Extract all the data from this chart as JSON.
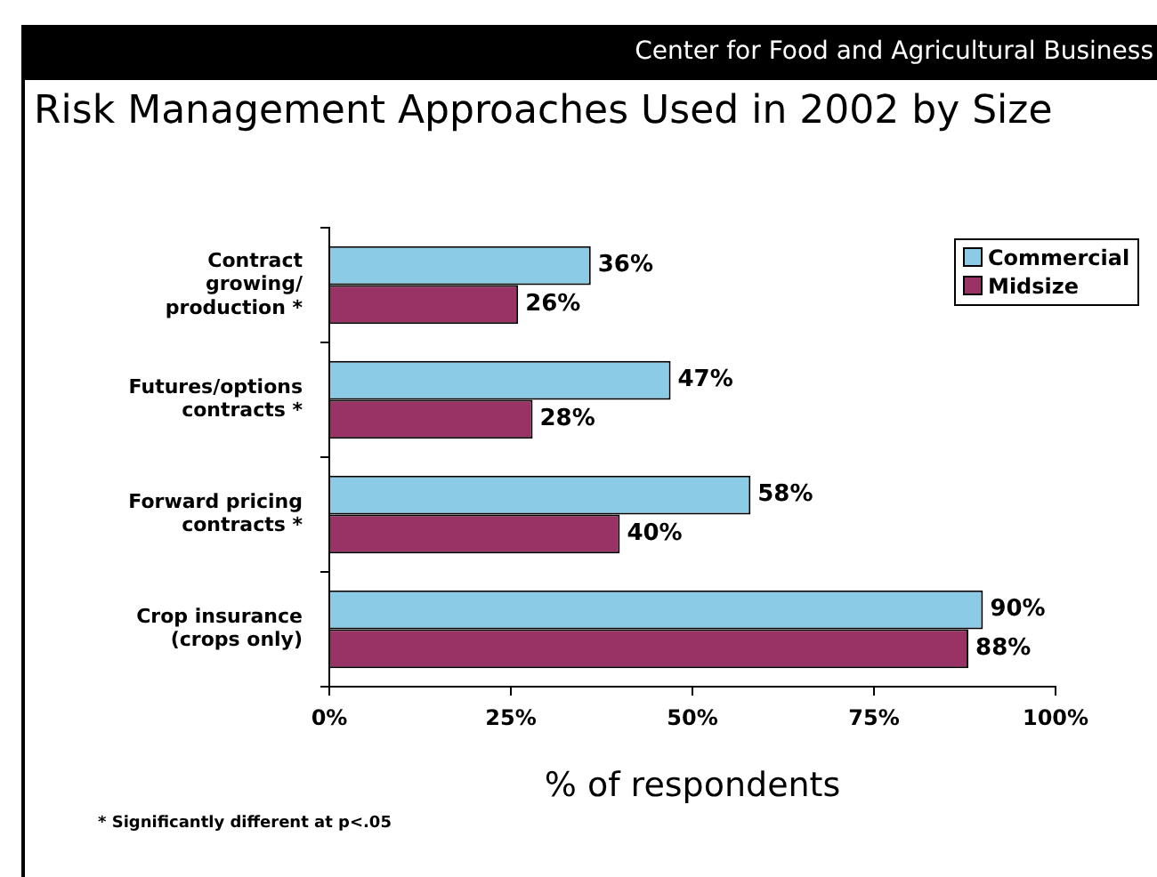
{
  "chart_data": {
    "type": "bar",
    "orientation": "horizontal",
    "title": "Risk Management Approaches Used in 2002 by Size",
    "xlabel": "% of respondents",
    "annotations": [
      "Center for Food and Agricultural Business",
      "* Significantly different at p<.05"
    ],
    "categories": [
      "Contract\ngrowing/\nproduction *",
      "Futures/options\ncontracts *",
      "Forward pricing\ncontracts *",
      "Crop insurance\n(crops only)"
    ],
    "series": [
      {
        "name": "Commercial",
        "color": "#8ccbe6",
        "values": [
          36,
          47,
          58,
          90
        ],
        "value_labels": [
          "36%",
          "47%",
          "58%",
          "90%"
        ]
      },
      {
        "name": "Midsize",
        "color": "#993366",
        "values": [
          26,
          28,
          40,
          88
        ],
        "value_labels": [
          "26%",
          "28%",
          "40%",
          "88%"
        ]
      }
    ],
    "xlim": [
      0,
      100
    ],
    "xticks": [
      {
        "value": 0,
        "label": "0%"
      },
      {
        "value": 25,
        "label": "25%"
      },
      {
        "value": 50,
        "label": "50%"
      },
      {
        "value": 75,
        "label": "75%"
      },
      {
        "value": 100,
        "label": "100%"
      }
    ],
    "grid": false,
    "legend": "top right"
  }
}
